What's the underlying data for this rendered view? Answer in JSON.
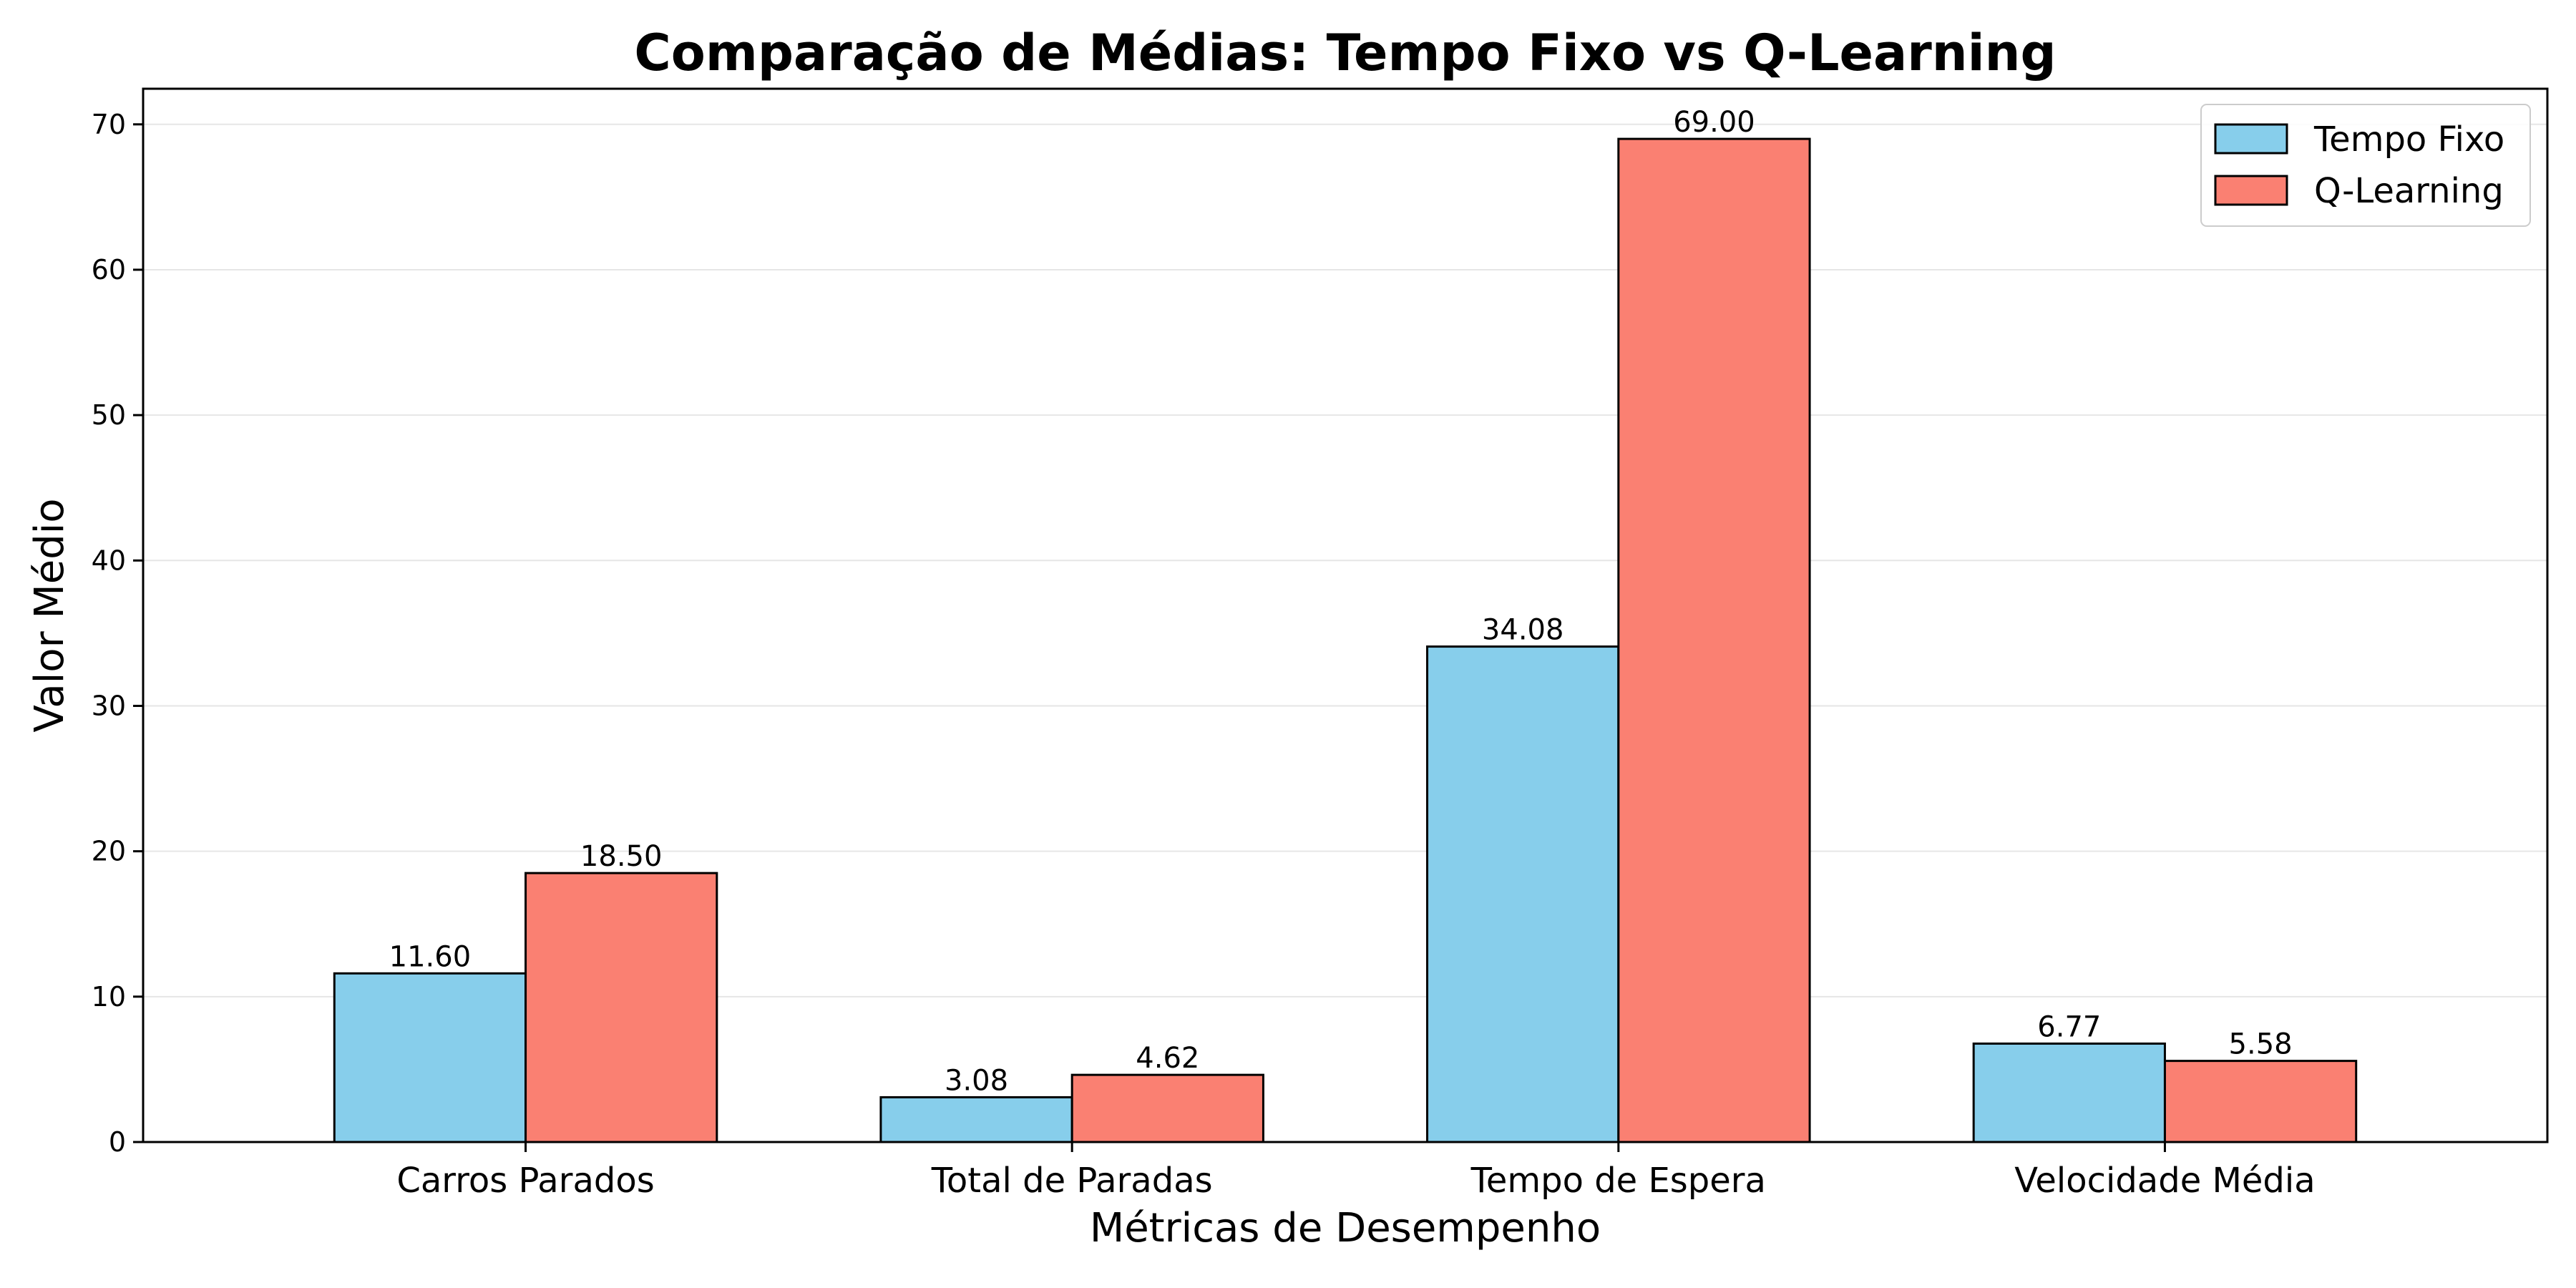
{
  "chart_data": {
    "type": "bar",
    "title": "Comparação de Médias: Tempo Fixo vs Q-Learning",
    "xlabel": "Métricas de Desempenho",
    "ylabel": "Valor Médio",
    "categories": [
      "Carros Parados",
      "Total de Paradas",
      "Tempo de Espera",
      "Velocidade Média"
    ],
    "series": [
      {
        "name": "Tempo Fixo",
        "values": [
          11.6,
          3.08,
          34.08,
          6.77
        ],
        "labels": [
          "11.60",
          "3.08",
          "34.08",
          "6.77"
        ],
        "color": "#87CEEB"
      },
      {
        "name": "Q-Learning",
        "values": [
          18.5,
          4.62,
          69.0,
          5.58
        ],
        "labels": [
          "18.50",
          "4.62",
          "69.00",
          "5.58"
        ],
        "color": "#FA8072"
      }
    ],
    "ylim": [
      0,
      72.45
    ],
    "yticks": [
      0,
      10,
      20,
      30,
      40,
      50,
      60,
      70
    ],
    "ytick_labels": [
      "0",
      "10",
      "20",
      "30",
      "40",
      "50",
      "60",
      "70"
    ],
    "grid": "y",
    "grid_color": "#e6e6e6",
    "edge_color": "#000000",
    "legend_position": "top-right"
  }
}
